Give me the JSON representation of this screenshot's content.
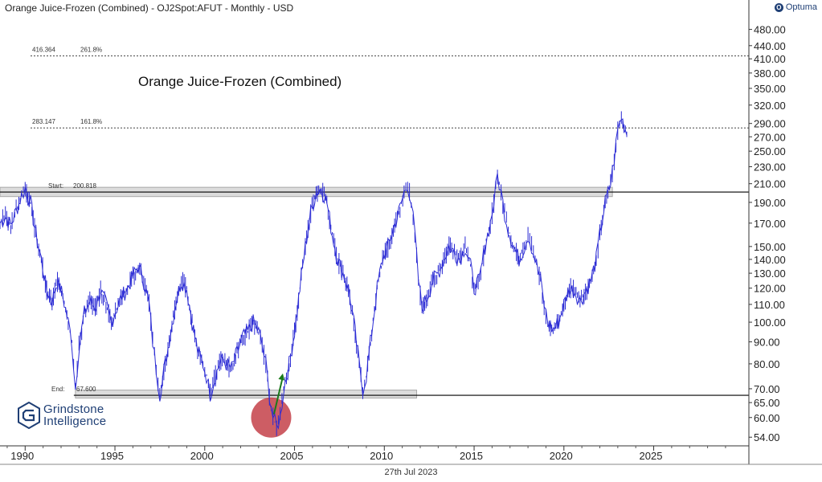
{
  "header": {
    "title": "Orange Juice-Frozen (Combined) - OJ2Spot:AFUT - Monthly - USD",
    "brand": "Optuma",
    "brand_icon": "optuma-logo-icon"
  },
  "footer": {
    "date": "27th Jul 2023"
  },
  "watermark": {
    "line1": "Grindstone",
    "line2": "Intelligence",
    "icon": "grindstone-g-logo-icon"
  },
  "chart_data": {
    "type": "line",
    "title": "Orange Juice-Frozen (Combined)",
    "frequency": "Monthly",
    "currency": "USD",
    "y_scale": "log",
    "ylim": [
      52,
      520
    ],
    "xlim": [
      1988.6,
      2030.3
    ],
    "x_ticks": [
      {
        "value": 1990,
        "label": "1990"
      },
      {
        "value": 1995,
        "label": "1995"
      },
      {
        "value": 2000,
        "label": "2000"
      },
      {
        "value": 2005,
        "label": "2005"
      },
      {
        "value": 2010,
        "label": "2010"
      },
      {
        "value": 2015,
        "label": "2015"
      },
      {
        "value": 2020,
        "label": "2020"
      },
      {
        "value": 2025,
        "label": "2025"
      }
    ],
    "y_ticks": [
      {
        "value": 480,
        "label": "480.00"
      },
      {
        "value": 440,
        "label": "440.00"
      },
      {
        "value": 410,
        "label": "410.00"
      },
      {
        "value": 380,
        "label": "380.00"
      },
      {
        "value": 350,
        "label": "350.00"
      },
      {
        "value": 320,
        "label": "320.00"
      },
      {
        "value": 290,
        "label": "290.00"
      },
      {
        "value": 270,
        "label": "270.00"
      },
      {
        "value": 250,
        "label": "250.00"
      },
      {
        "value": 230,
        "label": "230.00"
      },
      {
        "value": 210,
        "label": "210.00"
      },
      {
        "value": 190,
        "label": "190.00"
      },
      {
        "value": 170,
        "label": "170.00"
      },
      {
        "value": 150,
        "label": "150.00"
      },
      {
        "value": 140,
        "label": "140.00"
      },
      {
        "value": 130,
        "label": "130.00"
      },
      {
        "value": 120,
        "label": "120.00"
      },
      {
        "value": 110,
        "label": "110.00"
      },
      {
        "value": 100,
        "label": "100.00"
      },
      {
        "value": 90,
        "label": "90.00"
      },
      {
        "value": 80,
        "label": "80.00"
      },
      {
        "value": 70,
        "label": "70.00"
      },
      {
        "value": 65,
        "label": "65.00"
      },
      {
        "value": 60,
        "label": "60.00"
      },
      {
        "value": 54,
        "label": "54.00"
      }
    ],
    "series": [
      {
        "color": "#2b2bd4",
        "points": [
          [
            1988.6,
            170
          ],
          [
            1988.9,
            176
          ],
          [
            1989.2,
            168
          ],
          [
            1989.5,
            182
          ],
          [
            1989.8,
            197
          ],
          [
            1990.0,
            205
          ],
          [
            1990.3,
            190
          ],
          [
            1990.6,
            160
          ],
          [
            1990.9,
            140
          ],
          [
            1991.2,
            118
          ],
          [
            1991.5,
            112
          ],
          [
            1991.8,
            125
          ],
          [
            1992.1,
            115
          ],
          [
            1992.4,
            100
          ],
          [
            1992.6,
            90
          ],
          [
            1992.8,
            70
          ],
          [
            1993.0,
            88
          ],
          [
            1993.3,
            105
          ],
          [
            1993.6,
            112
          ],
          [
            1993.9,
            108
          ],
          [
            1994.2,
            118
          ],
          [
            1994.5,
            110
          ],
          [
            1994.8,
            100
          ],
          [
            1995.1,
            108
          ],
          [
            1995.4,
            115
          ],
          [
            1995.7,
            120
          ],
          [
            1996.0,
            128
          ],
          [
            1996.3,
            135
          ],
          [
            1996.6,
            125
          ],
          [
            1996.9,
            110
          ],
          [
            1997.1,
            90
          ],
          [
            1997.3,
            78
          ],
          [
            1997.5,
            68
          ],
          [
            1997.8,
            80
          ],
          [
            1998.1,
            95
          ],
          [
            1998.4,
            112
          ],
          [
            1998.7,
            125
          ],
          [
            1999.0,
            120
          ],
          [
            1999.3,
            100
          ],
          [
            1999.6,
            86
          ],
          [
            1999.9,
            80
          ],
          [
            2000.1,
            75
          ],
          [
            2000.3,
            68
          ],
          [
            2000.6,
            75
          ],
          [
            2000.9,
            82
          ],
          [
            2001.2,
            80
          ],
          [
            2001.5,
            78
          ],
          [
            2001.8,
            85
          ],
          [
            2002.1,
            92
          ],
          [
            2002.4,
            95
          ],
          [
            2002.7,
            100
          ],
          [
            2003.0,
            95
          ],
          [
            2003.2,
            88
          ],
          [
            2003.4,
            80
          ],
          [
            2003.6,
            68
          ],
          [
            2003.8,
            60
          ],
          [
            2004.0,
            57
          ],
          [
            2004.2,
            60
          ],
          [
            2004.4,
            70
          ],
          [
            2004.7,
            80
          ],
          [
            2005.0,
            95
          ],
          [
            2005.3,
            120
          ],
          [
            2005.6,
            150
          ],
          [
            2005.9,
            180
          ],
          [
            2006.2,
            200
          ],
          [
            2006.5,
            205
          ],
          [
            2006.8,
            190
          ],
          [
            2007.1,
            160
          ],
          [
            2007.4,
            140
          ],
          [
            2007.7,
            130
          ],
          [
            2008.0,
            120
          ],
          [
            2008.3,
            100
          ],
          [
            2008.6,
            80
          ],
          [
            2008.8,
            70
          ],
          [
            2009.0,
            75
          ],
          [
            2009.3,
            95
          ],
          [
            2009.6,
            120
          ],
          [
            2009.9,
            140
          ],
          [
            2010.2,
            150
          ],
          [
            2010.5,
            165
          ],
          [
            2010.8,
            180
          ],
          [
            2011.1,
            200
          ],
          [
            2011.3,
            210
          ],
          [
            2011.5,
            190
          ],
          [
            2011.7,
            160
          ],
          [
            2011.9,
            125
          ],
          [
            2012.1,
            108
          ],
          [
            2012.4,
            115
          ],
          [
            2012.7,
            125
          ],
          [
            2013.0,
            130
          ],
          [
            2013.3,
            140
          ],
          [
            2013.6,
            150
          ],
          [
            2013.9,
            145
          ],
          [
            2014.2,
            140
          ],
          [
            2014.5,
            150
          ],
          [
            2014.8,
            135
          ],
          [
            2015.0,
            120
          ],
          [
            2015.3,
            125
          ],
          [
            2015.6,
            150
          ],
          [
            2015.9,
            170
          ],
          [
            2016.1,
            190
          ],
          [
            2016.3,
            220
          ],
          [
            2016.5,
            200
          ],
          [
            2016.7,
            180
          ],
          [
            2016.9,
            165
          ],
          [
            2017.2,
            150
          ],
          [
            2017.5,
            140
          ],
          [
            2017.8,
            150
          ],
          [
            2018.0,
            160
          ],
          [
            2018.2,
            150
          ],
          [
            2018.4,
            140
          ],
          [
            2018.7,
            125
          ],
          [
            2018.9,
            110
          ],
          [
            2019.1,
            100
          ],
          [
            2019.4,
            96
          ],
          [
            2019.7,
            100
          ],
          [
            2020.0,
            110
          ],
          [
            2020.3,
            120
          ],
          [
            2020.6,
            118
          ],
          [
            2020.9,
            112
          ],
          [
            2021.2,
            118
          ],
          [
            2021.5,
            125
          ],
          [
            2021.8,
            140
          ],
          [
            2022.0,
            160
          ],
          [
            2022.3,
            190
          ],
          [
            2022.6,
            210
          ],
          [
            2022.8,
            240
          ],
          [
            2023.0,
            280
          ],
          [
            2023.2,
            300
          ],
          [
            2023.5,
            275
          ]
        ]
      }
    ],
    "fib_levels": [
      {
        "value": 416.364,
        "value_label": "416.364",
        "label": "261.8%"
      },
      {
        "value": 283.147,
        "value_label": "283.147",
        "label": "161.8%"
      }
    ],
    "zones": [
      {
        "kind": "Start",
        "name": "Start:",
        "value_label": "200.818",
        "value": 200.818,
        "band": [
          196,
          206
        ],
        "x_from": 1988.6,
        "x_to": 2022.7
      },
      {
        "kind": "End",
        "name": "End:",
        "value_label": "67.600",
        "value": 67.6,
        "band": [
          66.6,
          69.5
        ],
        "x_from": 1992.8,
        "x_to": 2011.8
      }
    ],
    "annotations": [
      {
        "type": "circle",
        "x": 2003.7,
        "y": 60,
        "color": "#c0353d"
      },
      {
        "type": "arrow",
        "from": [
          2003.85,
          61
        ],
        "to": [
          2004.35,
          76
        ],
        "color": "#1a7a1a"
      }
    ]
  }
}
